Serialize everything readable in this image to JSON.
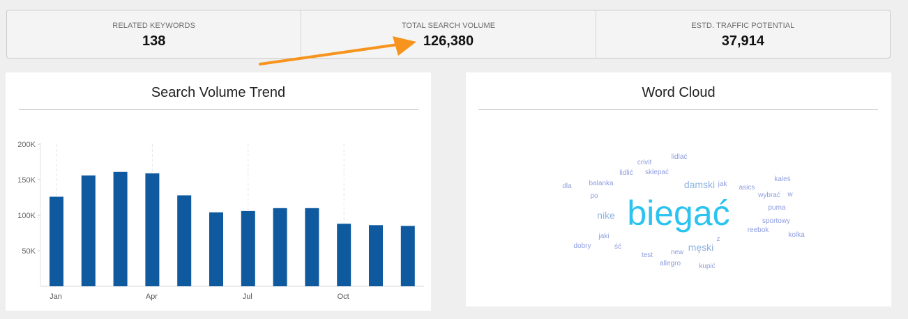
{
  "stats": [
    {
      "label": "RELATED KEYWORDS",
      "value": "138"
    },
    {
      "label": "TOTAL SEARCH VOLUME",
      "value": "126,380"
    },
    {
      "label": "ESTD. TRAFFIC POTENTIAL",
      "value": "37,914"
    }
  ],
  "trend": {
    "title": "Search Volume Trend"
  },
  "chart_data": {
    "type": "bar",
    "title": "Search Volume Trend",
    "xlabel": "",
    "ylabel": "",
    "ylim": [
      0,
      200000
    ],
    "yticks": [
      {
        "value": 50000,
        "label": "50K"
      },
      {
        "value": 100000,
        "label": "100K"
      },
      {
        "value": 150000,
        "label": "150K"
      },
      {
        "value": 200000,
        "label": "200K"
      }
    ],
    "xtick_labels": [
      {
        "index": 0,
        "label": "Jan"
      },
      {
        "index": 3,
        "label": "Apr"
      },
      {
        "index": 6,
        "label": "Jul"
      },
      {
        "index": 9,
        "label": "Oct"
      }
    ],
    "values": [
      126000,
      156000,
      161000,
      159000,
      128000,
      104000,
      106000,
      110000,
      110000,
      88000,
      86000,
      85000
    ],
    "bar_color": "#0f5a9e",
    "grid": true
  },
  "wordcloud": {
    "title": "Word Cloud",
    "words": [
      {
        "text": "biegać",
        "size": "xl",
        "color": "#2bc3f0"
      },
      {
        "text": "damski",
        "size": "md",
        "color": "#8fb3e0"
      },
      {
        "text": "męski",
        "size": "md",
        "color": "#8fb3e0"
      },
      {
        "text": "nike",
        "size": "md",
        "color": "#8fb3e0"
      },
      {
        "text": "lidlać",
        "size": "sm",
        "color": "#8e9de0"
      },
      {
        "text": "crivit",
        "size": "sm",
        "color": "#8e9de0"
      },
      {
        "text": "lidlić",
        "size": "sm",
        "color": "#8e9de0"
      },
      {
        "text": "sklepać",
        "size": "sm",
        "color": "#8e9de0"
      },
      {
        "text": "balanka",
        "size": "sm",
        "color": "#8e9de0"
      },
      {
        "text": "dla",
        "size": "sm",
        "color": "#8e9de0"
      },
      {
        "text": "po",
        "size": "sm",
        "color": "#8e9de0"
      },
      {
        "text": "jak",
        "size": "sm",
        "color": "#8e9de0"
      },
      {
        "text": "asics",
        "size": "sm",
        "color": "#8e9de0"
      },
      {
        "text": "kaleś",
        "size": "sm",
        "color": "#8e9de0"
      },
      {
        "text": "wybrać",
        "size": "sm",
        "color": "#8e9de0"
      },
      {
        "text": "w",
        "size": "sm",
        "color": "#8e9de0"
      },
      {
        "text": "puma",
        "size": "sm",
        "color": "#8e9de0"
      },
      {
        "text": "sportowy",
        "size": "sm",
        "color": "#8e9de0"
      },
      {
        "text": "reebok",
        "size": "sm",
        "color": "#8e9de0"
      },
      {
        "text": "kolka",
        "size": "sm",
        "color": "#8e9de0"
      },
      {
        "text": "jaki",
        "size": "sm",
        "color": "#8e9de0"
      },
      {
        "text": "z",
        "size": "sm",
        "color": "#8e9de0"
      },
      {
        "text": "dobry",
        "size": "sm",
        "color": "#8e9de0"
      },
      {
        "text": "ść",
        "size": "sm",
        "color": "#8e9de0"
      },
      {
        "text": "test",
        "size": "sm",
        "color": "#8e9de0"
      },
      {
        "text": "new",
        "size": "sm",
        "color": "#8e9de0"
      },
      {
        "text": "allegro",
        "size": "sm",
        "color": "#8e9de0"
      },
      {
        "text": "kupić",
        "size": "sm",
        "color": "#8e9de0"
      }
    ]
  },
  "annotation": {
    "arrow_color": "#f7941d"
  }
}
